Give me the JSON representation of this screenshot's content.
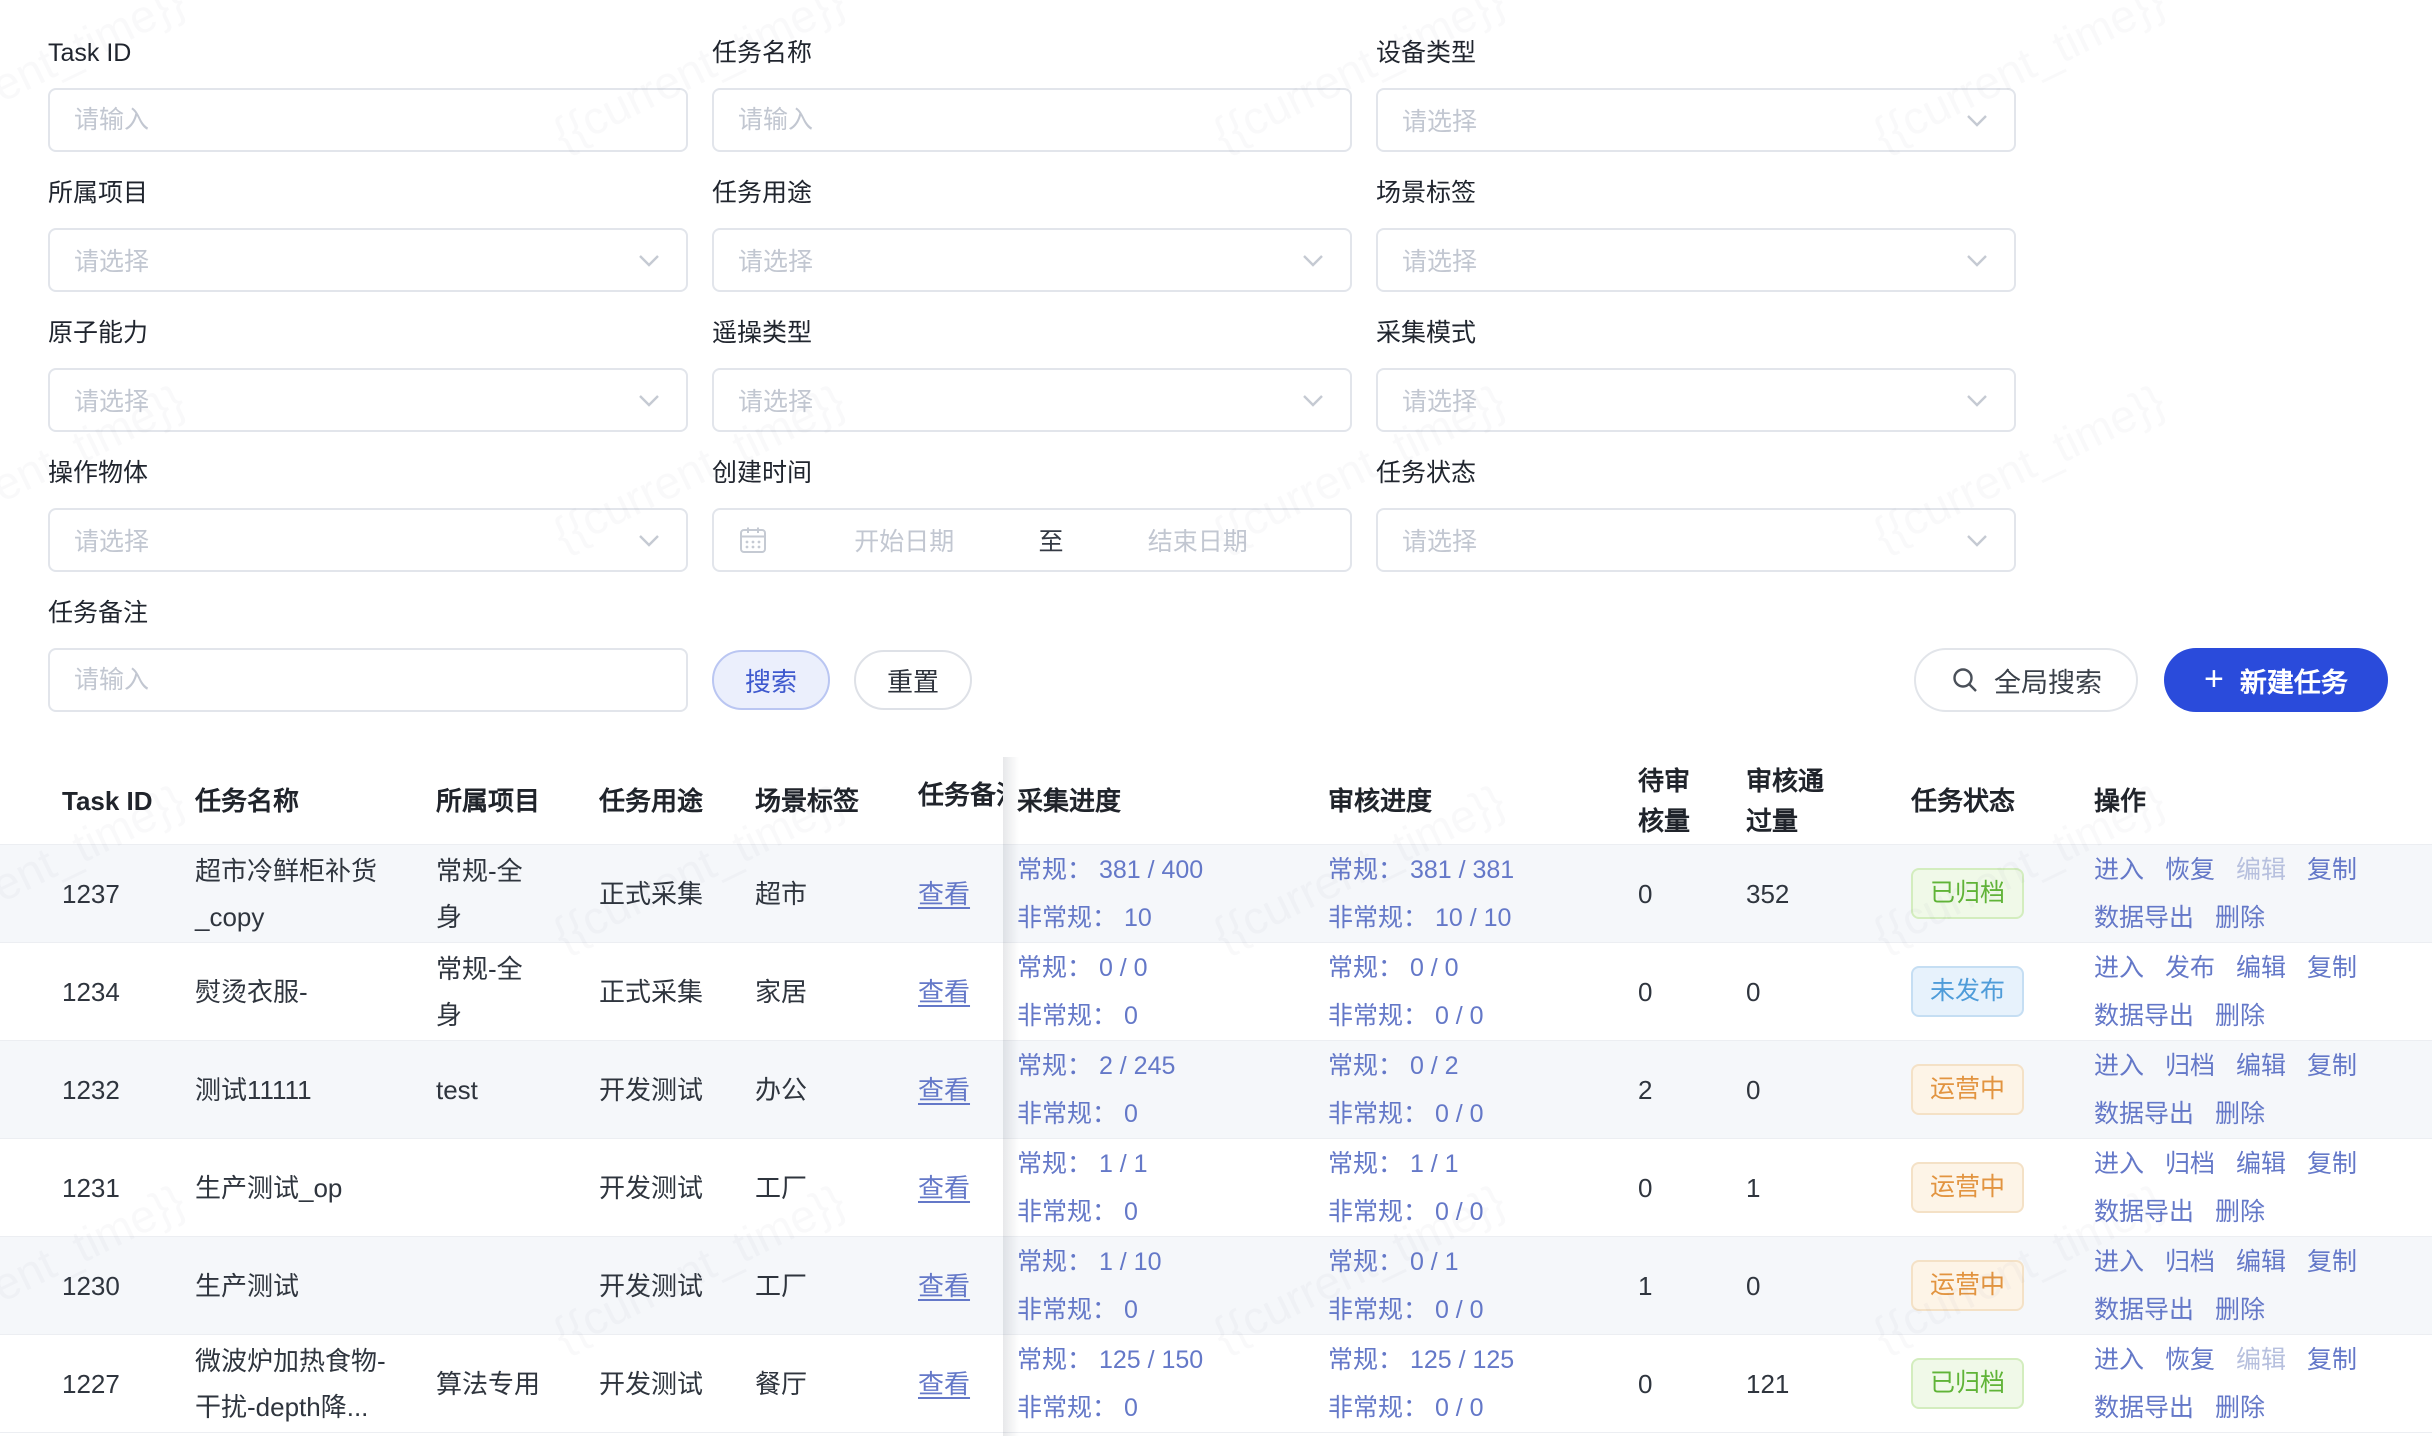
{
  "watermark": "{{current_time}}",
  "filters": {
    "fields": [
      {
        "label": "Task ID",
        "type": "input",
        "placeholder": "请输入"
      },
      {
        "label": "任务名称",
        "type": "input",
        "placeholder": "请输入"
      },
      {
        "label": "设备类型",
        "type": "select",
        "placeholder": "请选择"
      },
      {
        "label": "所属项目",
        "type": "select",
        "placeholder": "请选择"
      },
      {
        "label": "任务用途",
        "type": "select",
        "placeholder": "请选择"
      },
      {
        "label": "场景标签",
        "type": "select",
        "placeholder": "请选择"
      },
      {
        "label": "原子能力",
        "type": "select",
        "placeholder": "请选择"
      },
      {
        "label": "遥操类型",
        "type": "select",
        "placeholder": "请选择"
      },
      {
        "label": "采集模式",
        "type": "select",
        "placeholder": "请选择"
      },
      {
        "label": "操作物体",
        "type": "select",
        "placeholder": "请选择"
      },
      {
        "label": "任务状态",
        "type": "select",
        "placeholder": "请选择"
      }
    ],
    "date_field": {
      "label": "创建时间",
      "start_placeholder": "开始日期",
      "separator": "至",
      "end_placeholder": "结束日期"
    },
    "remark_field": {
      "label": "任务备注",
      "placeholder": "请输入"
    },
    "search_label": "搜索",
    "reset_label": "重置"
  },
  "toolbar": {
    "global_search": "全局搜索",
    "create_task": "新建任务"
  },
  "table": {
    "columns": [
      "Task ID",
      "任务名称",
      "所属项目",
      "任务用途",
      "场景标签",
      "任务备注",
      "采集进度",
      "审核进度",
      "待审核量",
      "审核通过量",
      "任务状态",
      "操作"
    ],
    "rows": [
      {
        "id": "1237",
        "name": "超市冷鲜柜补货_copy",
        "project": "常规-全身",
        "purpose": "正式采集",
        "scene": "超市",
        "remark_link": "查看",
        "collect_l1": "常规： 381 / 400",
        "collect_l2": "非常规： 10",
        "review_l1": "常规： 381 / 381",
        "review_l2": "非常规： 10 / 10",
        "pending": "0",
        "approved": "352",
        "status": {
          "label": "已归档",
          "type": "green"
        },
        "actions": [
          {
            "label": "进入",
            "name": "enter"
          },
          {
            "label": "恢复",
            "name": "restore"
          },
          {
            "label": "编辑",
            "name": "edit",
            "disabled": true
          },
          {
            "label": "复制",
            "name": "copy"
          },
          {
            "label": "数据导出",
            "name": "export"
          },
          {
            "label": "删除",
            "name": "delete"
          }
        ]
      },
      {
        "id": "1234",
        "name": "熨烫衣服-",
        "project": "常规-全身",
        "purpose": "正式采集",
        "scene": "家居",
        "remark_link": "查看",
        "collect_l1": "常规： 0 / 0",
        "collect_l2": "非常规： 0",
        "review_l1": "常规： 0 / 0",
        "review_l2": "非常规： 0 / 0",
        "pending": "0",
        "approved": "0",
        "status": {
          "label": "未发布",
          "type": "blue"
        },
        "actions": [
          {
            "label": "进入",
            "name": "enter"
          },
          {
            "label": "发布",
            "name": "publish"
          },
          {
            "label": "编辑",
            "name": "edit"
          },
          {
            "label": "复制",
            "name": "copy"
          },
          {
            "label": "数据导出",
            "name": "export"
          },
          {
            "label": "删除",
            "name": "delete"
          }
        ]
      },
      {
        "id": "1232",
        "name": "测试11111",
        "project": "test",
        "purpose": "开发测试",
        "scene": "办公",
        "remark_link": "查看",
        "collect_l1": "常规： 2 / 245",
        "collect_l2": "非常规： 0",
        "review_l1": "常规： 0 / 2",
        "review_l2": "非常规： 0 / 0",
        "pending": "2",
        "approved": "0",
        "status": {
          "label": "运营中",
          "type": "orange"
        },
        "actions": [
          {
            "label": "进入",
            "name": "enter"
          },
          {
            "label": "归档",
            "name": "archive"
          },
          {
            "label": "编辑",
            "name": "edit"
          },
          {
            "label": "复制",
            "name": "copy"
          },
          {
            "label": "数据导出",
            "name": "export"
          },
          {
            "label": "删除",
            "name": "delete"
          }
        ]
      },
      {
        "id": "1231",
        "name": "生产测试_op",
        "project": "",
        "purpose": "开发测试",
        "scene": "工厂",
        "remark_link": "查看",
        "collect_l1": "常规： 1 / 1",
        "collect_l2": "非常规： 0",
        "review_l1": "常规： 1 / 1",
        "review_l2": "非常规： 0 / 0",
        "pending": "0",
        "approved": "1",
        "status": {
          "label": "运营中",
          "type": "orange"
        },
        "actions": [
          {
            "label": "进入",
            "name": "enter"
          },
          {
            "label": "归档",
            "name": "archive"
          },
          {
            "label": "编辑",
            "name": "edit"
          },
          {
            "label": "复制",
            "name": "copy"
          },
          {
            "label": "数据导出",
            "name": "export"
          },
          {
            "label": "删除",
            "name": "delete"
          }
        ]
      },
      {
        "id": "1230",
        "name": "生产测试",
        "project": "",
        "purpose": "开发测试",
        "scene": "工厂",
        "remark_link": "查看",
        "collect_l1": "常规： 1 / 10",
        "collect_l2": "非常规： 0",
        "review_l1": "常规： 0 / 1",
        "review_l2": "非常规： 0 / 0",
        "pending": "1",
        "approved": "0",
        "status": {
          "label": "运营中",
          "type": "orange"
        },
        "actions": [
          {
            "label": "进入",
            "name": "enter"
          },
          {
            "label": "归档",
            "name": "archive"
          },
          {
            "label": "编辑",
            "name": "edit"
          },
          {
            "label": "复制",
            "name": "copy"
          },
          {
            "label": "数据导出",
            "name": "export"
          },
          {
            "label": "删除",
            "name": "delete"
          }
        ]
      },
      {
        "id": "1227",
        "name": "微波炉加热食物-干扰-depth降...",
        "project": "算法专用",
        "purpose": "开发测试",
        "scene": "餐厅",
        "remark_link": "查看",
        "collect_l1": "常规： 125 / 150",
        "collect_l2": "非常规： 0",
        "review_l1": "常规： 125 / 125",
        "review_l2": "非常规： 0 / 0",
        "pending": "0",
        "approved": "121",
        "status": {
          "label": "已归档",
          "type": "green"
        },
        "actions": [
          {
            "label": "进入",
            "name": "enter"
          },
          {
            "label": "恢复",
            "name": "restore"
          },
          {
            "label": "编辑",
            "name": "edit",
            "disabled": true
          },
          {
            "label": "复制",
            "name": "copy"
          },
          {
            "label": "数据导出",
            "name": "export"
          },
          {
            "label": "删除",
            "name": "delete"
          }
        ]
      }
    ]
  },
  "theme": {
    "primary": "#2a4bdb",
    "link": "#6478c8",
    "link_disabled": "#b7c0de",
    "zebra_row": "#f5f7fa",
    "status_green": "#60b437",
    "status_blue": "#4f9cd9",
    "status_orange": "#e29440"
  }
}
